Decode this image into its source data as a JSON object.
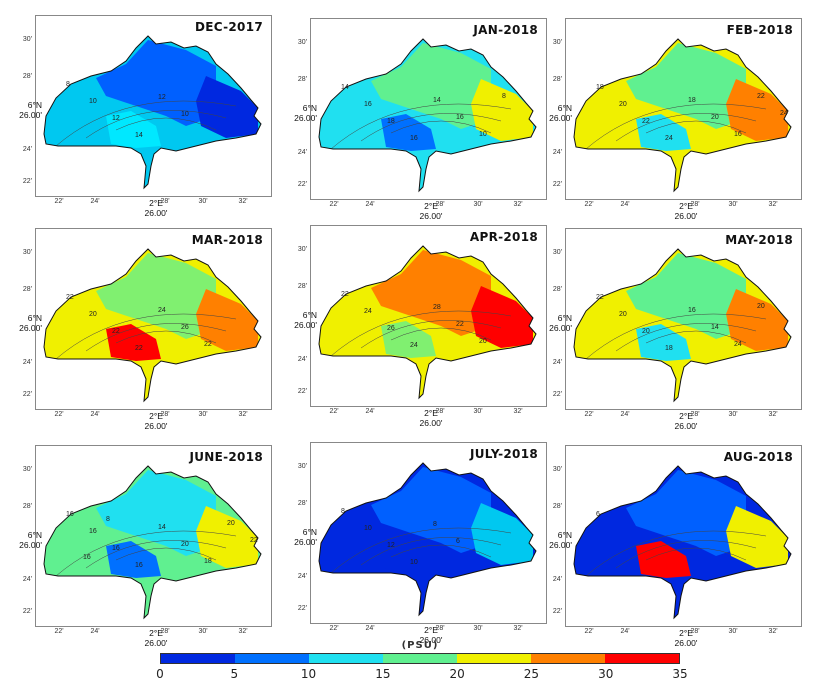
{
  "panels": [
    {
      "title": "DEC-2017",
      "lat_label": [
        "6°N",
        "26.00'"
      ],
      "lon_label": [
        "2°E",
        "26.00'"
      ],
      "yticks": [
        "30'",
        "28'",
        "24'",
        "22'"
      ],
      "xticks": [
        "22'",
        "24'",
        "28'",
        "30'",
        "32'"
      ],
      "contour_labels": [
        "8",
        "10",
        "12",
        "14",
        "12",
        "10"
      ],
      "base": "#00c8f0",
      "zones": [
        {
          "fill": "#0060ff"
        },
        {
          "fill": "#0028e0"
        },
        {
          "fill": "#00e8ff"
        }
      ]
    },
    {
      "title": "JAN-2018",
      "lat_label": [
        "6°N",
        "26.00'"
      ],
      "lon_label": [
        "2°E",
        "26.00'"
      ],
      "yticks": [
        "30'",
        "28'",
        "24'",
        "22'"
      ],
      "xticks": [
        "22'",
        "24'",
        "28'",
        "30'",
        "32'"
      ],
      "contour_labels": [
        "14",
        "16",
        "18",
        "16",
        "14",
        "16",
        "10",
        "8"
      ],
      "base": "#20e0f0",
      "zones": [
        {
          "fill": "#60f090"
        },
        {
          "fill": "#f0f000"
        },
        {
          "fill": "#0070ff"
        }
      ]
    },
    {
      "title": "FEB-2018",
      "lat_label": [
        "6°N",
        "26.00'"
      ],
      "lon_label": [
        "2°E",
        "26.00'"
      ],
      "yticks": [
        "30'",
        "28'",
        "24'",
        "22'"
      ],
      "xticks": [
        "22'",
        "24'",
        "28'",
        "30'",
        "32'"
      ],
      "contour_labels": [
        "18",
        "20",
        "22",
        "24",
        "18",
        "20",
        "16",
        "22",
        "24"
      ],
      "base": "#f0f000",
      "zones": [
        {
          "fill": "#60f090"
        },
        {
          "fill": "#ff8000"
        },
        {
          "fill": "#20e0f0"
        }
      ]
    },
    {
      "title": "MAR-2018",
      "lat_label": [
        "6°N",
        "26.00'"
      ],
      "lon_label": [
        "2°E",
        "26.00'"
      ],
      "yticks": [
        "30'",
        "28'",
        "24'",
        "22'"
      ],
      "xticks": [
        "22'",
        "24'",
        "28'",
        "30'",
        "32'"
      ],
      "contour_labels": [
        "22",
        "20",
        "22",
        "22",
        "24",
        "26",
        "22"
      ],
      "base": "#f0f000",
      "zones": [
        {
          "fill": "#80f070"
        },
        {
          "fill": "#ff8000"
        },
        {
          "fill": "#ff0000"
        }
      ]
    },
    {
      "title": "APR-2018",
      "lat_label": [
        "6°N",
        "26.00'"
      ],
      "lon_label": [
        "2°E",
        "26.00'"
      ],
      "yticks": [
        "30'",
        "28'",
        "24'",
        "22'"
      ],
      "xticks": [
        "22'",
        "24'",
        "28'",
        "30'",
        "32'"
      ],
      "contour_labels": [
        "22",
        "24",
        "26",
        "24",
        "28",
        "22",
        "20"
      ],
      "base": "#f0f000",
      "zones": [
        {
          "fill": "#ff8000"
        },
        {
          "fill": "#ff0000"
        },
        {
          "fill": "#80f070"
        }
      ]
    },
    {
      "title": "MAY-2018",
      "lat_label": [
        "6°N",
        "26.00'"
      ],
      "lon_label": [
        "2°E",
        "26.00'"
      ],
      "yticks": [
        "30'",
        "28'",
        "24'",
        "22'"
      ],
      "xticks": [
        "22'",
        "24'",
        "28'",
        "30'",
        "32'"
      ],
      "contour_labels": [
        "22",
        "20",
        "20",
        "18",
        "16",
        "14",
        "24",
        "20"
      ],
      "base": "#f0f000",
      "zones": [
        {
          "fill": "#60f090"
        },
        {
          "fill": "#ff8000"
        },
        {
          "fill": "#20e0f0"
        }
      ]
    },
    {
      "title": "JUNE-2018",
      "lat_label": [
        "6°N",
        "26.00'"
      ],
      "lon_label": [
        "2°E",
        "26.00'"
      ],
      "yticks": [
        "30'",
        "28'",
        "24'",
        "22'"
      ],
      "xticks": [
        "22'",
        "24'",
        "28'",
        "30'",
        "32'"
      ],
      "contour_labels": [
        "16",
        "16",
        "16",
        "16",
        "14",
        "20",
        "18",
        "20",
        "22",
        "16",
        "8"
      ],
      "base": "#60f090",
      "zones": [
        {
          "fill": "#20e0f0"
        },
        {
          "fill": "#f0f000"
        },
        {
          "fill": "#0070ff"
        }
      ]
    },
    {
      "title": "JULY-2018",
      "lat_label": [
        "6°N",
        "26.00'"
      ],
      "lon_label": [
        "2°E",
        "26.00'"
      ],
      "yticks": [
        "30'",
        "28'",
        "24'",
        "22'"
      ],
      "xticks": [
        "22'",
        "24'",
        "28'",
        "30'",
        "32'"
      ],
      "contour_labels": [
        "8",
        "10",
        "12",
        "10",
        "8",
        "6"
      ],
      "base": "#0028e0",
      "zones": [
        {
          "fill": "#0060ff"
        },
        {
          "fill": "#00c8f0"
        },
        {
          "fill": "#0028e0"
        }
      ]
    },
    {
      "title": "AUG-2018",
      "lat_label": [
        "6°N",
        "26.00'"
      ],
      "lon_label": [
        "2°E",
        "26.00'"
      ],
      "yticks": [
        "30'",
        "28'",
        "24'",
        "22'"
      ],
      "xticks": [
        "22'",
        "24'",
        "28'",
        "30'",
        "32'"
      ],
      "contour_labels": [
        "6"
      ],
      "base": "#0028e0",
      "zones": [
        {
          "fill": "#0060ff"
        },
        {
          "fill": "#f0f000"
        },
        {
          "fill": "#ff0000"
        }
      ]
    }
  ],
  "colorbar": {
    "label": "(PSU)",
    "ticks": [
      "0",
      "5",
      "10",
      "15",
      "20",
      "25",
      "30",
      "35"
    ],
    "colors": [
      "#0028e0",
      "#0070ff",
      "#20e0f0",
      "#60f090",
      "#f0f000",
      "#ff8000",
      "#ff0000"
    ]
  }
}
